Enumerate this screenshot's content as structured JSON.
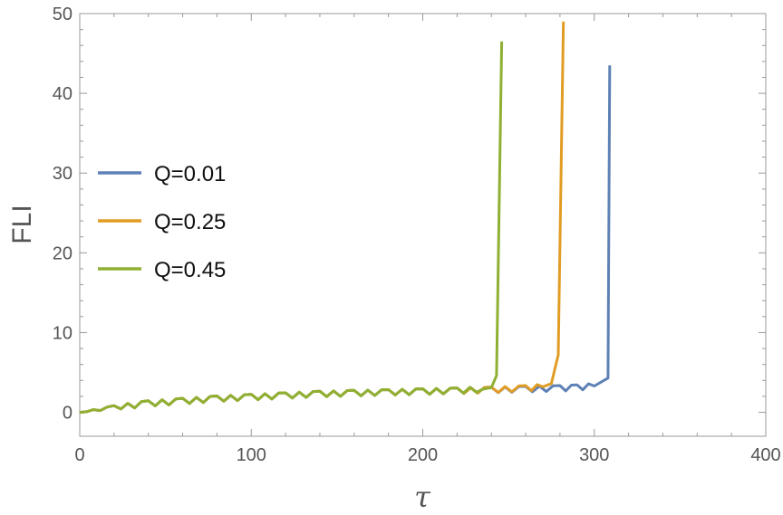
{
  "chart_data": {
    "type": "line",
    "xlabel": "τ",
    "ylabel": "FLI",
    "xlim": [
      0,
      400
    ],
    "ylim": [
      -3,
      50
    ],
    "xticks": [
      0,
      100,
      200,
      300,
      400
    ],
    "yticks": [
      0,
      10,
      20,
      30,
      40,
      50
    ],
    "grid": false,
    "legend_position": "left",
    "series": [
      {
        "name": "Q=0.01",
        "color": "#5e81b5",
        "x": [
          0,
          20,
          40,
          60,
          80,
          100,
          120,
          140,
          160,
          180,
          200,
          220,
          240,
          260,
          280,
          290,
          300,
          308,
          309
        ],
        "y": [
          0,
          0.6,
          1.1,
          1.4,
          1.7,
          1.9,
          2.1,
          2.3,
          2.4,
          2.5,
          2.6,
          2.7,
          2.8,
          2.9,
          3.0,
          3.1,
          3.3,
          4.3,
          43.5
        ]
      },
      {
        "name": "Q=0.25",
        "color": "#e19c24",
        "x": [
          0,
          20,
          40,
          60,
          80,
          100,
          120,
          140,
          160,
          180,
          200,
          220,
          240,
          260,
          270,
          275,
          279,
          282
        ],
        "y": [
          0,
          0.6,
          1.1,
          1.4,
          1.7,
          1.9,
          2.1,
          2.3,
          2.4,
          2.5,
          2.6,
          2.7,
          2.8,
          3.0,
          3.2,
          3.6,
          7.2,
          49.0
        ]
      },
      {
        "name": "Q=0.45",
        "color": "#8fb032",
        "x": [
          0,
          20,
          40,
          60,
          80,
          100,
          120,
          140,
          160,
          180,
          200,
          220,
          235,
          240,
          243,
          246
        ],
        "y": [
          0,
          0.6,
          1.1,
          1.4,
          1.7,
          1.9,
          2.1,
          2.3,
          2.4,
          2.5,
          2.6,
          2.7,
          2.9,
          3.1,
          4.6,
          46.5
        ]
      }
    ]
  }
}
